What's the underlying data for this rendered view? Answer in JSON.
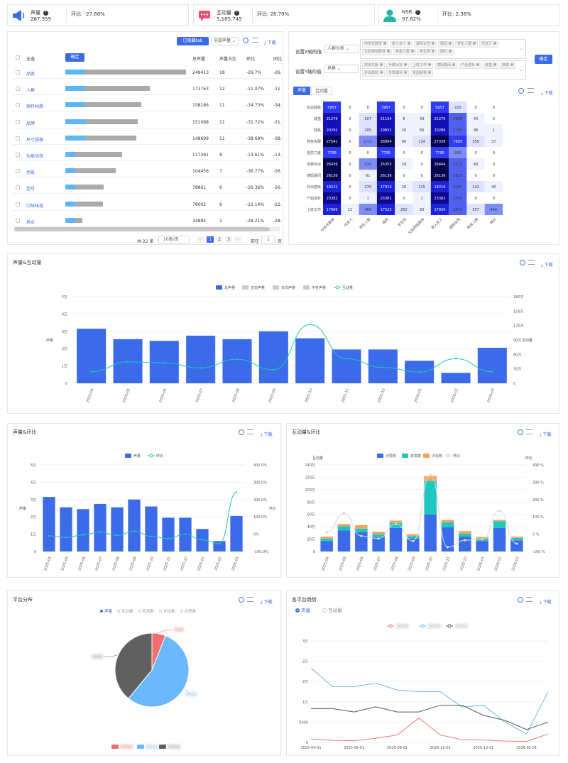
{
  "kpis": [
    {
      "label": "声量",
      "value": "267,359",
      "ratio_label": "环比:",
      "ratio": "-27.66%"
    },
    {
      "label": "互动量",
      "value": "5,185,745",
      "ratio_label": "环比:",
      "ratio": "28.79%"
    },
    {
      "label": "NSR",
      "value": "97.82%",
      "ratio_label": "环比:",
      "ratio": "2.36%"
    }
  ],
  "colors": {
    "primary": "#3b6be8",
    "bar_light": "#5bb8f5",
    "bar_gray": "#aaaaaa",
    "teal": "#1ec8c0",
    "orange": "#f4a35a",
    "pie_red": "#f07070",
    "pie_blue": "#6cb8ff",
    "pie_gray": "#606060"
  },
  "panel1": {
    "selected_btn": "已隐藏tab",
    "dropdown": "全部声量",
    "download": "下载",
    "confirm": "确定",
    "header": {
      "select": "全选",
      "total": "总声量",
      "share": "声量占比",
      "ratio": "环比",
      "ratio2": "同比"
    },
    "rows": [
      {
        "name": "品类",
        "total": "249413",
        "share": "18",
        "ratio": "-26.7%",
        "ratio2": "-26.",
        "pct": 1.0
      },
      {
        "name": "人群",
        "total": "173763",
        "share": "12",
        "ratio": "-11.07%",
        "ratio2": "-11",
        "pct": 0.7
      },
      {
        "name": "原料材质",
        "total": "158186",
        "share": "11",
        "ratio": "-34.73%",
        "ratio2": "-34.",
        "pct": 0.63
      },
      {
        "name": "品牌",
        "total": "151088",
        "share": "11",
        "ratio": "-31.72%",
        "ratio2": "-31.",
        "pct": 0.6
      },
      {
        "name": "尺寸规格",
        "total": "148699",
        "share": "11",
        "ratio": "-38.69%",
        "ratio2": "-38.",
        "pct": 0.59
      },
      {
        "name": "功能功效",
        "total": "117391",
        "share": "8",
        "ratio": "-13.61%",
        "ratio2": "-13.",
        "pct": 0.47
      },
      {
        "name": "场景",
        "total": "104456",
        "share": "7",
        "ratio": "-36.77%",
        "ratio2": "-36.",
        "pct": 0.42
      },
      {
        "name": "型号",
        "total": "78861",
        "share": "6",
        "ratio": "-26.36%",
        "ratio2": "-26.",
        "pct": 0.32
      },
      {
        "name": "口味味道",
        "total": "78002",
        "share": "6",
        "ratio": "-22.14%",
        "ratio2": "-22.",
        "pct": 0.31
      },
      {
        "name": "地点",
        "total": "34884",
        "share": "2",
        "ratio": "-28.21%",
        "ratio2": "-28.",
        "pct": 0.14
      }
    ],
    "pager": {
      "total": "共 22 条",
      "per_page": "10条/页",
      "pages": [
        "1",
        "2",
        "3"
      ],
      "goto": "前往",
      "goto_val": "1",
      "page_unit": "页"
    }
  },
  "panel2": {
    "x_label": "设置X轴的值",
    "x_select": "人群分析",
    "x_tags": [
      "中老年群体",
      "家人亲人",
      "成熟女性",
      "婚妈",
      "养生人群",
      "代言人",
      "文韵带娃群体",
      "熬夜人群",
      "学生党",
      "网红"
    ],
    "y_label": "设置Y轴的值",
    "y_select": "场景",
    "y_tags": [
      "熬夜失眠",
      "手脚冰凉",
      "上班工作",
      "姨妈期间",
      "产后滋补",
      "装盒",
      "缺铁",
      "外出游玩",
      "冬季滋补",
      "贫血缺铁"
    ],
    "confirm": "确定",
    "tabs": [
      "声量",
      "互动量"
    ],
    "download": "下载",
    "cols": [
      "中老年群体",
      "代言人",
      "养生人群",
      "婚妈",
      "学生党",
      "文韵带娃群体",
      "家人亲人",
      "成熟女性",
      "熬夜人群",
      "网红"
    ],
    "rows": [
      {
        "name": "贫血缺铁",
        "vals": [
          5957,
          0,
          0,
          5957,
          0,
          0,
          5957,
          220,
          0,
          0
        ]
      },
      {
        "name": "装盒",
        "vals": [
          21279,
          0,
          207,
          21134,
          8,
          43,
          21270,
          3966,
          43,
          0
        ]
      },
      {
        "name": "缺铁",
        "vals": [
          20292,
          0,
          205,
          19832,
          26,
          66,
          20286,
          2745,
          98,
          1
        ]
      },
      {
        "name": "熬夜失眠",
        "vals": [
          27541,
          0,
          1211,
          26864,
          86,
          134,
          27339,
          7893,
          359,
          37
        ]
      },
      {
        "name": "抵抗力差",
        "vals": [
          7795,
          0,
          0,
          7795,
          0,
          0,
          7795,
          930,
          0,
          0
        ]
      },
      {
        "name": "手脚冰凉",
        "vals": [
          26436,
          0,
          520,
          26353,
          19,
          0,
          26444,
          3372,
          40,
          0
        ]
      },
      {
        "name": "姨妈期间",
        "vals": [
          26136,
          0,
          61,
          26136,
          0,
          0,
          26136,
          2625,
          0,
          0
        ]
      },
      {
        "name": "外出游玩",
        "vals": [
          18222,
          0,
          270,
          17919,
          28,
          125,
          18216,
          2282,
          142,
          40
        ]
      },
      {
        "name": "产后滋补",
        "vals": [
          23382,
          0,
          1,
          23381,
          0,
          1,
          23382,
          2505,
          0,
          0
        ]
      },
      {
        "name": "上班工作",
        "vals": [
          17906,
          12,
          460,
          17523,
          262,
          83,
          17920,
          2937,
          357,
          440
        ]
      }
    ]
  },
  "panel3": {
    "title": "声量&互动量",
    "download": "下载",
    "legend": [
      "总声量",
      "正向声量",
      "负向声量",
      "中性声量",
      "互动量"
    ],
    "left_axis": "声量",
    "right_axis": "互动量"
  },
  "panel4": {
    "title": "声量&环比",
    "download": "下载",
    "legend": [
      "声量",
      "环比"
    ],
    "left_axis": "声量",
    "right_axis": "环比"
  },
  "panel5": {
    "title": "互动量&环比",
    "download": "下载",
    "legend": [
      "点赞数",
      "转发数",
      "评论数",
      "环比"
    ],
    "left_axis": "互动量",
    "right_axis": "环比"
  },
  "panel6": {
    "title": "平台分布",
    "download": "下载",
    "radios": [
      "声量",
      "互动量",
      "转发数",
      "评论数",
      "点赞数"
    ],
    "slices": [
      {
        "value": 0.06
      },
      {
        "value": 0.55
      },
      {
        "value": 0.39
      }
    ]
  },
  "panel7": {
    "title": "各平台趋势",
    "download": "下载",
    "radios": [
      "声量",
      "互动量"
    ]
  },
  "chart_data": [
    {
      "type": "bar",
      "name": "声量&互动量",
      "categories": [
        "2025-04",
        "2025-05",
        "2025-06",
        "2025-07",
        "2025-08",
        "2025-09",
        "2025-10",
        "2025-11",
        "2025-12",
        "2026-01",
        "2026-02",
        "2026-03"
      ],
      "series": [
        {
          "name": "总声量",
          "values": [
            31500,
            25500,
            24500,
            27500,
            25500,
            30000,
            26000,
            19500,
            19500,
            13000,
            6000,
            20500
          ]
        },
        {
          "name": "互动量",
          "values": [
            240000,
            445000,
            425000,
            320000,
            500000,
            280000,
            1220000,
            510000,
            330000,
            235000,
            510000,
            240000
          ]
        }
      ],
      "yticks_left": [
        "0",
        "1万",
        "2万",
        "3万",
        "4万",
        "5万"
      ],
      "yticks_right": [
        "0",
        "30万",
        "60万",
        "90万",
        "120万",
        "150万",
        "180万"
      ],
      "ylim_left": [
        0,
        50000
      ],
      "ylim_right": [
        0,
        1800000
      ]
    },
    {
      "type": "bar",
      "name": "声量&环比",
      "categories": [
        "2025-04",
        "2025-05",
        "2025-06",
        "2025-07",
        "2025-08",
        "2025-09",
        "2025-10",
        "2025-11",
        "2025-12",
        "2026-01",
        "2026-02",
        "2026-03"
      ],
      "series": [
        {
          "name": "声量",
          "values": [
            31500,
            25500,
            24500,
            27500,
            25500,
            30000,
            26000,
            19500,
            19500,
            13000,
            6000,
            20500
          ]
        },
        {
          "name": "环比",
          "values": [
            -0.1,
            -0.19,
            -0.04,
            0.12,
            -0.07,
            0.18,
            -0.13,
            -0.25,
            0,
            -0.33,
            -0.54,
            2.42
          ]
        }
      ],
      "yticks_left": [
        "0",
        "1万",
        "2万",
        "3万",
        "4万",
        "5万"
      ],
      "yticks_right": [
        "-100.0%",
        "0%",
        "100.0%",
        "200.0%",
        "300.0%",
        "400.0%"
      ],
      "ylim_left": [
        0,
        50000
      ],
      "ylim_right": [
        -1,
        4
      ]
    },
    {
      "type": "bar",
      "name": "互动量&环比",
      "categories": [
        "2025-04",
        "2025-05",
        "2025-06",
        "2025-07",
        "2025-08",
        "2025-09",
        "2025-10",
        "2025-11",
        "2025-12",
        "2026-01",
        "2026-02",
        "2026-03"
      ],
      "series": [
        {
          "name": "点赞数",
          "values": [
            170000,
            340000,
            310000,
            230000,
            380000,
            210000,
            600000,
            390000,
            240000,
            170000,
            380000,
            180000
          ]
        },
        {
          "name": "转发数",
          "values": [
            40000,
            70000,
            60000,
            50000,
            80000,
            40000,
            540000,
            80000,
            50000,
            40000,
            110000,
            40000
          ]
        },
        {
          "name": "评论数",
          "values": [
            30000,
            35000,
            55000,
            40000,
            40000,
            30000,
            80000,
            40000,
            40000,
            25000,
            20000,
            20000
          ]
        },
        {
          "name": "环比",
          "values": [
            0.1,
            1.2,
            -0.1,
            -0.25,
            0.6,
            -0.4,
            3.4,
            -0.75,
            -0.35,
            -0.3,
            1.35,
            -0.55
          ]
        }
      ],
      "yticks_left": [
        "0",
        "20万",
        "40万",
        "60万",
        "80万",
        "100万",
        "120万",
        "140万"
      ],
      "yticks_right": [
        "-100 %",
        "0 %",
        "100 %",
        "200 %",
        "300 %",
        "400 %"
      ],
      "ylim_left": [
        0,
        1400000
      ],
      "ylim_right": [
        -1,
        4
      ]
    },
    {
      "type": "pie",
      "name": "平台分布",
      "values": [
        0.06,
        0.55,
        0.39
      ]
    },
    {
      "type": "line",
      "name": "各平台趋势",
      "x": [
        "2025-04-01",
        "2025-05-01",
        "2025-06-01",
        "2025-07-01",
        "2025-08-01",
        "2025-09-01",
        "2025-10-01",
        "2025-11-01",
        "2025-12-01",
        "2026-01-01",
        "2026-02-01",
        "2026-03-01"
      ],
      "xticks": [
        "2025-04-01",
        "2025-06-01",
        "2025-08-01",
        "2025-10-01",
        "2025-12-01",
        "2026-02-01"
      ],
      "yticks": [
        "0",
        "5000",
        "1万",
        "2万",
        "2万",
        "3万"
      ],
      "ylim": [
        0,
        30000
      ],
      "series": [
        {
          "values": [
            1000,
            600,
            500,
            1200,
            2200,
            7200,
            2200,
            800,
            700,
            400,
            300,
            2500
          ]
        },
        {
          "values": [
            22000,
            16500,
            16500,
            17500,
            15500,
            15000,
            15000,
            10500,
            11000,
            6000,
            2500,
            15000
          ]
        },
        {
          "values": [
            10000,
            10000,
            9000,
            10500,
            9000,
            9000,
            11000,
            11000,
            8000,
            6500,
            3800,
            6000
          ]
        }
      ]
    }
  ]
}
